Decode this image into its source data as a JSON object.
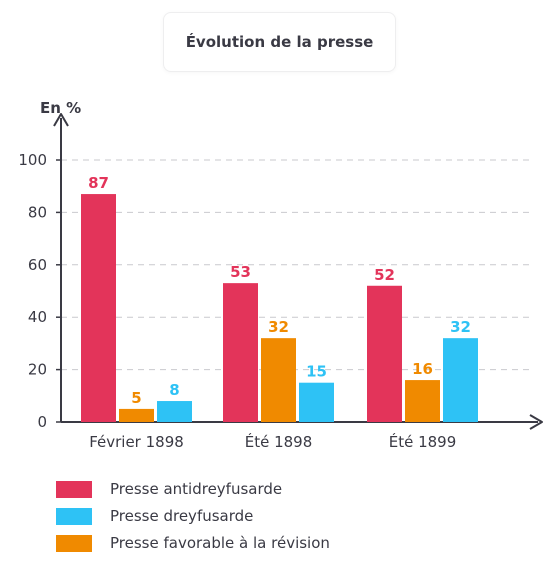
{
  "title": "Évolution de la presse",
  "chart_data": {
    "type": "bar",
    "title": "Évolution de la presse",
    "ylabel": "En %",
    "xlabel": "",
    "ylim": [
      0,
      100
    ],
    "yticks": [
      0,
      20,
      40,
      60,
      80,
      100
    ],
    "grid": true,
    "legend_position": "bottom",
    "categories": [
      "Février 1898",
      "Été 1898",
      "Été 1899"
    ],
    "series": [
      {
        "name": "Presse antidreyfusarde",
        "values": [
          87,
          53,
          52
        ],
        "color": "#e3345a"
      },
      {
        "name": "Presse favorable à la révision",
        "values": [
          5,
          32,
          16
        ],
        "color": "#f08a00"
      },
      {
        "name": "Presse dreyfusarde",
        "values": [
          8,
          15,
          32
        ],
        "color": "#2ec2f5"
      }
    ]
  },
  "legend": [
    {
      "label": "Presse antidreyfusarde",
      "color": "#e3345a"
    },
    {
      "label": "Presse dreyfusarde",
      "color": "#2ec2f5"
    },
    {
      "label": "Presse favorable à la révision",
      "color": "#f08a00"
    }
  ]
}
